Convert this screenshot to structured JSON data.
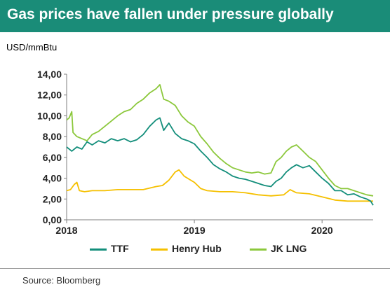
{
  "header": {
    "title": "Gas prices have fallen under pressure globally"
  },
  "unit_label": "USD/mmBtu",
  "source": "Source: Bloomberg",
  "colors": {
    "title_bg": "#1a8c78",
    "ttf": "#138e7b",
    "henry_hub": "#f5c000",
    "jk_lng": "#8cc83c"
  },
  "chart_data": {
    "type": "line",
    "title": "Gas prices have fallen under pressure globally",
    "ylabel": "USD/mmBtu",
    "xlabel": "",
    "ylim": [
      0,
      14
    ],
    "xlim": [
      2018.0,
      2020.4
    ],
    "y_ticks": [
      "0,00",
      "2,00",
      "4,00",
      "6,00",
      "8,00",
      "10,00",
      "12,00",
      "14,00"
    ],
    "x_ticks": [
      {
        "label": "2018",
        "value": 2018
      },
      {
        "label": "2019",
        "value": 2019
      },
      {
        "label": "2020",
        "value": 2020
      }
    ],
    "grid": false,
    "legend": "bottom",
    "series": [
      {
        "name": "TTF",
        "color": "#138e7b",
        "points": [
          [
            2018.0,
            7.0
          ],
          [
            2018.04,
            6.6
          ],
          [
            2018.08,
            7.0
          ],
          [
            2018.12,
            6.8
          ],
          [
            2018.16,
            7.5
          ],
          [
            2018.2,
            7.2
          ],
          [
            2018.25,
            7.6
          ],
          [
            2018.3,
            7.4
          ],
          [
            2018.35,
            7.8
          ],
          [
            2018.4,
            7.6
          ],
          [
            2018.45,
            7.8
          ],
          [
            2018.5,
            7.5
          ],
          [
            2018.55,
            7.7
          ],
          [
            2018.6,
            8.2
          ],
          [
            2018.65,
            9.0
          ],
          [
            2018.7,
            9.6
          ],
          [
            2018.73,
            9.8
          ],
          [
            2018.76,
            8.6
          ],
          [
            2018.8,
            9.3
          ],
          [
            2018.85,
            8.3
          ],
          [
            2018.9,
            7.8
          ],
          [
            2018.95,
            7.6
          ],
          [
            2019.0,
            7.3
          ],
          [
            2019.05,
            6.6
          ],
          [
            2019.1,
            6.0
          ],
          [
            2019.15,
            5.3
          ],
          [
            2019.2,
            4.9
          ],
          [
            2019.25,
            4.6
          ],
          [
            2019.3,
            4.2
          ],
          [
            2019.35,
            4.0
          ],
          [
            2019.4,
            3.9
          ],
          [
            2019.45,
            3.7
          ],
          [
            2019.5,
            3.5
          ],
          [
            2019.55,
            3.3
          ],
          [
            2019.6,
            3.2
          ],
          [
            2019.64,
            3.7
          ],
          [
            2019.68,
            4.0
          ],
          [
            2019.72,
            4.6
          ],
          [
            2019.76,
            5.0
          ],
          [
            2019.8,
            5.3
          ],
          [
            2019.85,
            5.0
          ],
          [
            2019.9,
            5.2
          ],
          [
            2019.95,
            4.6
          ],
          [
            2020.0,
            4.0
          ],
          [
            2020.05,
            3.5
          ],
          [
            2020.1,
            2.8
          ],
          [
            2020.15,
            2.8
          ],
          [
            2020.2,
            2.4
          ],
          [
            2020.25,
            2.5
          ],
          [
            2020.3,
            2.2
          ],
          [
            2020.35,
            2.0
          ],
          [
            2020.38,
            1.8
          ],
          [
            2020.4,
            1.4
          ]
        ]
      },
      {
        "name": "Henry Hub",
        "color": "#f5c000",
        "points": [
          [
            2018.0,
            2.8
          ],
          [
            2018.03,
            2.9
          ],
          [
            2018.06,
            3.4
          ],
          [
            2018.08,
            3.6
          ],
          [
            2018.1,
            2.8
          ],
          [
            2018.14,
            2.7
          ],
          [
            2018.2,
            2.8
          ],
          [
            2018.3,
            2.8
          ],
          [
            2018.4,
            2.9
          ],
          [
            2018.5,
            2.9
          ],
          [
            2018.6,
            2.9
          ],
          [
            2018.7,
            3.2
          ],
          [
            2018.75,
            3.3
          ],
          [
            2018.8,
            3.8
          ],
          [
            2018.85,
            4.6
          ],
          [
            2018.88,
            4.8
          ],
          [
            2018.92,
            4.2
          ],
          [
            2018.96,
            3.9
          ],
          [
            2019.0,
            3.6
          ],
          [
            2019.05,
            3.0
          ],
          [
            2019.1,
            2.8
          ],
          [
            2019.2,
            2.7
          ],
          [
            2019.3,
            2.7
          ],
          [
            2019.4,
            2.6
          ],
          [
            2019.5,
            2.4
          ],
          [
            2019.6,
            2.3
          ],
          [
            2019.7,
            2.4
          ],
          [
            2019.75,
            2.9
          ],
          [
            2019.8,
            2.6
          ],
          [
            2019.9,
            2.5
          ],
          [
            2020.0,
            2.2
          ],
          [
            2020.1,
            1.9
          ],
          [
            2020.2,
            1.8
          ],
          [
            2020.3,
            1.8
          ],
          [
            2020.4,
            1.8
          ]
        ]
      },
      {
        "name": "JK LNG",
        "color": "#8cc83c",
        "points": [
          [
            2018.0,
            9.6
          ],
          [
            2018.02,
            9.8
          ],
          [
            2018.04,
            10.4
          ],
          [
            2018.05,
            8.4
          ],
          [
            2018.08,
            8.0
          ],
          [
            2018.12,
            7.8
          ],
          [
            2018.16,
            7.6
          ],
          [
            2018.2,
            8.2
          ],
          [
            2018.25,
            8.5
          ],
          [
            2018.3,
            9.0
          ],
          [
            2018.35,
            9.5
          ],
          [
            2018.4,
            10.0
          ],
          [
            2018.45,
            10.4
          ],
          [
            2018.5,
            10.6
          ],
          [
            2018.55,
            11.2
          ],
          [
            2018.6,
            11.6
          ],
          [
            2018.65,
            12.2
          ],
          [
            2018.7,
            12.6
          ],
          [
            2018.73,
            13.0
          ],
          [
            2018.76,
            11.6
          ],
          [
            2018.8,
            11.4
          ],
          [
            2018.85,
            11.0
          ],
          [
            2018.9,
            10.0
          ],
          [
            2018.95,
            9.4
          ],
          [
            2019.0,
            9.0
          ],
          [
            2019.05,
            8.0
          ],
          [
            2019.1,
            7.3
          ],
          [
            2019.15,
            6.5
          ],
          [
            2019.2,
            5.9
          ],
          [
            2019.25,
            5.4
          ],
          [
            2019.3,
            5.0
          ],
          [
            2019.35,
            4.8
          ],
          [
            2019.4,
            4.6
          ],
          [
            2019.45,
            4.5
          ],
          [
            2019.5,
            4.6
          ],
          [
            2019.55,
            4.4
          ],
          [
            2019.6,
            4.5
          ],
          [
            2019.64,
            5.6
          ],
          [
            2019.68,
            6.0
          ],
          [
            2019.72,
            6.6
          ],
          [
            2019.76,
            7.0
          ],
          [
            2019.8,
            7.2
          ],
          [
            2019.85,
            6.6
          ],
          [
            2019.9,
            6.0
          ],
          [
            2019.95,
            5.6
          ],
          [
            2020.0,
            4.8
          ],
          [
            2020.05,
            4.0
          ],
          [
            2020.1,
            3.3
          ],
          [
            2020.15,
            3.0
          ],
          [
            2020.2,
            3.0
          ],
          [
            2020.25,
            2.8
          ],
          [
            2020.3,
            2.6
          ],
          [
            2020.35,
            2.4
          ],
          [
            2020.4,
            2.3
          ]
        ]
      }
    ]
  }
}
